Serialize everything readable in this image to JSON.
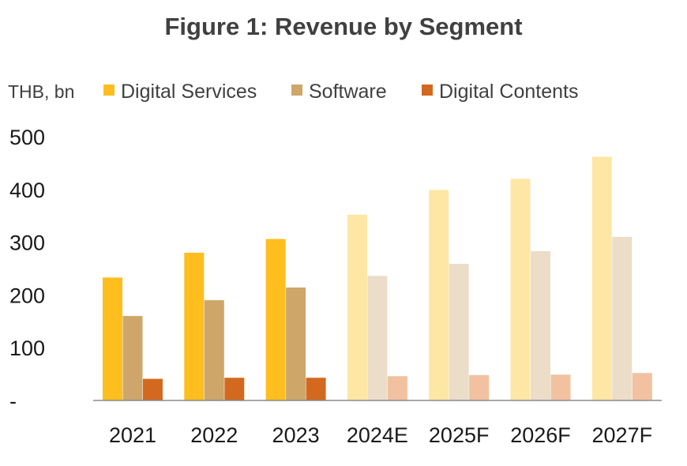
{
  "chart_data": {
    "type": "bar",
    "title": "Figure 1: Revenue by Segment",
    "unit_label": "THB, bn",
    "categories": [
      "2021",
      "2022",
      "2023",
      "2024E",
      "2025F",
      "2026F",
      "2027F"
    ],
    "series": [
      {
        "name": "Digital Services",
        "values": [
          233,
          280,
          306,
          352,
          399,
          420,
          462
        ],
        "color": "#FDBE1E",
        "forecast_color": "#FEE6A5"
      },
      {
        "name": "Software",
        "values": [
          160,
          190,
          214,
          236,
          259,
          283,
          310
        ],
        "color": "#CEA66A",
        "forecast_color": "#EBDDC8"
      },
      {
        "name": "Digital Contents",
        "values": [
          41,
          43,
          43,
          46,
          48,
          49,
          52
        ],
        "color": "#D2691E",
        "forecast_color": "#F2C1A0"
      }
    ],
    "actual_count": 3,
    "yticks": [
      "-",
      "100",
      "200",
      "300",
      "400",
      "500"
    ],
    "ylim": [
      0,
      500
    ],
    "grid": false,
    "legend_position": "top"
  }
}
